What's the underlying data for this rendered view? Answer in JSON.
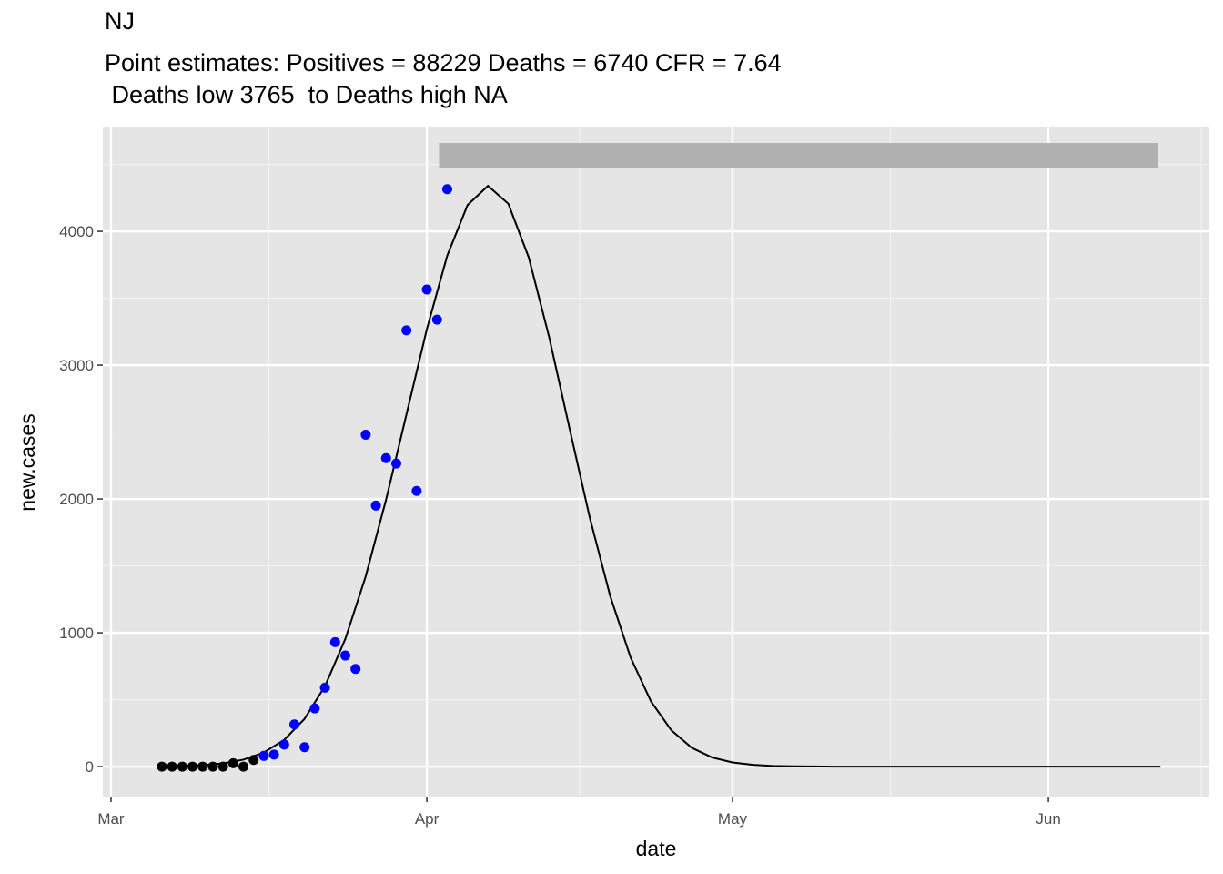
{
  "chart_data": {
    "type": "scatter",
    "title": "NJ",
    "subtitle": "Point estimates: Positives = 88229 Deaths = 6740 CFR = 7.64",
    "subtitle2": " Deaths low 3765  to Deaths high NA",
    "xlabel": "date",
    "ylabel": "new.cases",
    "xlim": [
      -0.8,
      107.8
    ],
    "ylim": [
      -224,
      4776
    ],
    "xticks": [
      {
        "value": 0,
        "label": "Mar"
      },
      {
        "value": 31,
        "label": "Apr"
      },
      {
        "value": 61,
        "label": "May"
      },
      {
        "value": 92,
        "label": "Jun"
      }
    ],
    "xminor": [
      15.5,
      46,
      76.5,
      107
    ],
    "yticks": [
      0,
      1000,
      2000,
      3000,
      4000
    ],
    "yminor": [
      500,
      1500,
      2500,
      3500,
      4500
    ],
    "grid": true,
    "series": [
      {
        "color": "#000000",
        "x": [
          5,
          6,
          7,
          8,
          9,
          10,
          11,
          12,
          13,
          14
        ],
        "values": [
          0,
          0,
          0,
          0,
          0,
          0,
          0,
          25,
          0,
          50
        ]
      },
      {
        "color": "#0000ff",
        "x": [
          15,
          16,
          17,
          18,
          19,
          20,
          21,
          22,
          23,
          24,
          25,
          26,
          27,
          28,
          29,
          30,
          31,
          32,
          33
        ],
        "values": [
          80,
          90,
          165,
          315,
          145,
          435,
          590,
          930,
          830,
          730,
          2480,
          1950,
          2305,
          2265,
          3260,
          2060,
          3565,
          3340,
          4315
        ]
      }
    ],
    "line": {
      "color": "#000000",
      "x": [
        5,
        7,
        9,
        11,
        13,
        15,
        17,
        19,
        21,
        23,
        25,
        27,
        29,
        31,
        33,
        35,
        37,
        39,
        41,
        43,
        45,
        47,
        49,
        51,
        53,
        55,
        57,
        59,
        61,
        63,
        65,
        67,
        69,
        71,
        73,
        75,
        77,
        79,
        81,
        83,
        85,
        87,
        89,
        91,
        93,
        95,
        97,
        99,
        101,
        103
      ],
      "values": [
        2,
        4,
        11,
        24,
        52,
        105,
        200,
        357,
        601,
        954,
        1422,
        1995,
        2632,
        3269,
        3818,
        4197,
        4340,
        4206,
        3805,
        3211,
        2529,
        1858,
        1274,
        815,
        487,
        271,
        141,
        68,
        31,
        13,
        5,
        2,
        1,
        0,
        0,
        0,
        0,
        0,
        0,
        0,
        0,
        0,
        0,
        0,
        0,
        0,
        0,
        0,
        0,
        0
      ]
    },
    "band": {
      "color": "#b0b0b0",
      "x": [
        32.2,
        102.8
      ],
      "y": [
        4470,
        4660
      ]
    }
  }
}
